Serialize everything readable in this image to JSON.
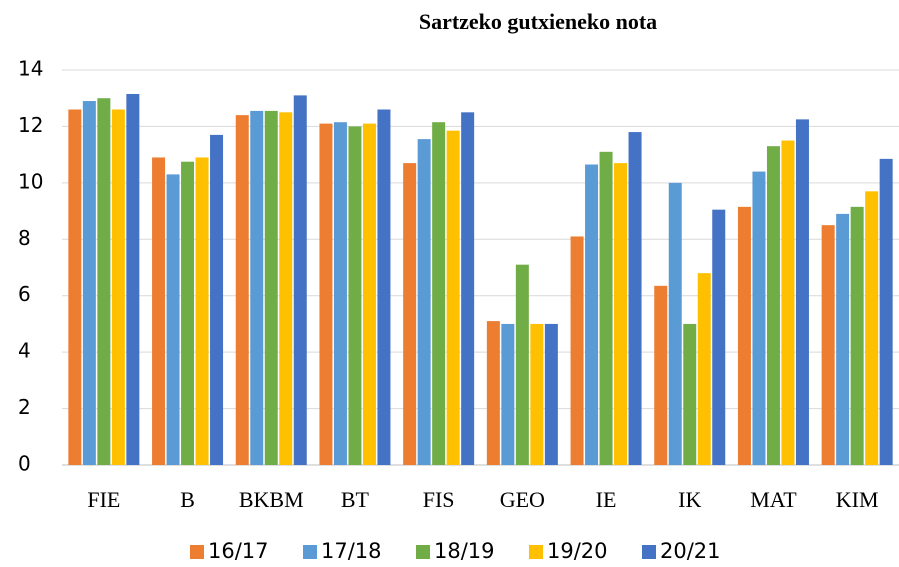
{
  "chart_data": {
    "type": "bar",
    "title": "Sartzeko gutxieneko nota",
    "categories": [
      "FIE",
      "B",
      "BKBM",
      "BT",
      "FIS",
      "GEO",
      "IE",
      "IK",
      "MAT",
      "KIM"
    ],
    "series": [
      {
        "name": "16/17",
        "color": "#ED7D31",
        "values": [
          12.6,
          10.9,
          12.4,
          12.1,
          10.7,
          5.1,
          8.1,
          6.35,
          9.15,
          8.5
        ]
      },
      {
        "name": "17/18",
        "color": "#5B9BD5",
        "values": [
          12.9,
          10.3,
          12.55,
          12.15,
          11.55,
          5.0,
          10.65,
          10.0,
          10.4,
          8.9
        ]
      },
      {
        "name": "18/19",
        "color": "#70AD47",
        "values": [
          13.0,
          10.75,
          12.55,
          12.0,
          12.15,
          7.1,
          11.1,
          5.0,
          11.3,
          9.15
        ]
      },
      {
        "name": "19/20",
        "color": "#FFC000",
        "values": [
          12.6,
          10.9,
          12.5,
          12.1,
          11.85,
          5.0,
          10.7,
          6.8,
          11.5,
          9.7
        ]
      },
      {
        "name": "20/21",
        "color": "#4472C4",
        "values": [
          13.15,
          11.7,
          13.1,
          12.6,
          12.5,
          5.0,
          11.8,
          9.05,
          12.25,
          10.85
        ]
      }
    ],
    "ylim": [
      0,
      14
    ],
    "yticks": [
      0,
      2,
      4,
      6,
      8,
      10,
      12,
      14
    ],
    "grid": true,
    "legend": "bottom"
  }
}
